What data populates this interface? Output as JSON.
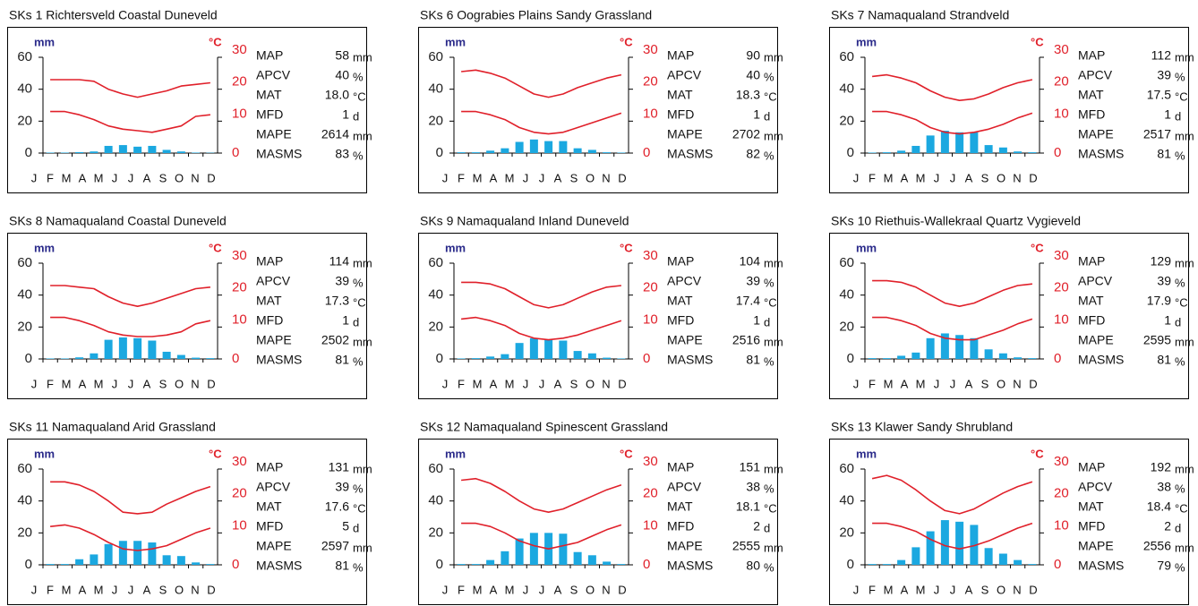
{
  "chart_data": [
    {
      "type": "bar",
      "title": "SKs 1  Richtersveld Coastal Duneveld",
      "ylabel": "mm",
      "y2label": "°C",
      "categories": [
        "J",
        "F",
        "M",
        "A",
        "M",
        "J",
        "J",
        "A",
        "S",
        "O",
        "N",
        "D"
      ],
      "ylim": [
        0,
        60
      ],
      "yticks": [
        0,
        20,
        40,
        60
      ],
      "y2lim": [
        0,
        30
      ],
      "y2ticks": [
        0,
        10,
        20,
        30
      ],
      "series": [
        {
          "type": "bar",
          "color": "#1ba8e0",
          "values": [
            0.3,
            0.3,
            0.6,
            1,
            4.5,
            5,
            4,
            4.5,
            2,
            1,
            0.3,
            0.2
          ]
        },
        {
          "type": "line",
          "axis": "y2",
          "color": "#e0202a",
          "values": [
            23,
            23,
            23,
            22.5,
            20,
            18.5,
            17.5,
            18.5,
            19.5,
            21,
            21.5,
            22
          ]
        },
        {
          "type": "line",
          "axis": "y2",
          "color": "#e0202a",
          "values": [
            13,
            13,
            12,
            10.5,
            8.5,
            7.5,
            7,
            6.5,
            7.5,
            8.5,
            11.5,
            12
          ]
        }
      ],
      "stats": [
        {
          "name": "MAP",
          "value": 58,
          "unit": "mm"
        },
        {
          "name": "APCV",
          "value": 40,
          "unit": "%"
        },
        {
          "name": "MAT",
          "value": "18.0",
          "unit": "°C"
        },
        {
          "name": "MFD",
          "value": 1,
          "unit": "d"
        },
        {
          "name": "MAPE",
          "value": 2614,
          "unit": "mm"
        },
        {
          "name": "MASMS",
          "value": 83,
          "unit": "%"
        }
      ]
    },
    {
      "type": "bar",
      "title": "SKs 6  Oograbies Plains Sandy Grassland",
      "ylabel": "mm",
      "y2label": "°C",
      "categories": [
        "J",
        "F",
        "M",
        "A",
        "M",
        "J",
        "J",
        "A",
        "S",
        "O",
        "N",
        "D"
      ],
      "ylim": [
        0,
        60
      ],
      "yticks": [
        0,
        20,
        40,
        60
      ],
      "y2lim": [
        0,
        30
      ],
      "y2ticks": [
        0,
        10,
        20,
        30
      ],
      "series": [
        {
          "type": "bar",
          "color": "#1ba8e0",
          "values": [
            0.5,
            0.5,
            1.5,
            3,
            7,
            8.5,
            7.5,
            7.5,
            3,
            2,
            0.5,
            0.3
          ]
        },
        {
          "type": "line",
          "axis": "y2",
          "color": "#e0202a",
          "values": [
            25.5,
            26,
            25,
            23.5,
            21,
            18.5,
            17.5,
            18.5,
            20.5,
            22,
            23.5,
            24.5
          ]
        },
        {
          "type": "line",
          "axis": "y2",
          "color": "#e0202a",
          "values": [
            13,
            13,
            12,
            10.5,
            8,
            6.5,
            6,
            6.5,
            8,
            9.5,
            11,
            12.5
          ]
        }
      ],
      "stats": [
        {
          "name": "MAP",
          "value": 90,
          "unit": "mm"
        },
        {
          "name": "APCV",
          "value": 40,
          "unit": "%"
        },
        {
          "name": "MAT",
          "value": 18.3,
          "unit": "°C"
        },
        {
          "name": "MFD",
          "value": 1,
          "unit": "d"
        },
        {
          "name": "MAPE",
          "value": 2702,
          "unit": "mm"
        },
        {
          "name": "MASMS",
          "value": 82,
          "unit": "%"
        }
      ]
    },
    {
      "type": "bar",
      "title": "SKs 7  Namaqualand Strandveld",
      "ylabel": "mm",
      "y2label": "°C",
      "categories": [
        "J",
        "F",
        "M",
        "A",
        "M",
        "J",
        "J",
        "A",
        "S",
        "O",
        "N",
        "D"
      ],
      "ylim": [
        0,
        60
      ],
      "yticks": [
        0,
        20,
        40,
        60
      ],
      "y2lim": [
        0,
        30
      ],
      "y2ticks": [
        0,
        10,
        20,
        30
      ],
      "series": [
        {
          "type": "bar",
          "color": "#1ba8e0",
          "values": [
            0.3,
            0.5,
            1.5,
            4.5,
            11,
            14,
            13,
            13,
            5,
            3.5,
            1,
            0.5
          ]
        },
        {
          "type": "line",
          "axis": "y2",
          "color": "#e0202a",
          "values": [
            24,
            24.5,
            23.5,
            22,
            19.5,
            17.5,
            16.5,
            17,
            18.5,
            20.5,
            22,
            23
          ]
        },
        {
          "type": "line",
          "axis": "y2",
          "color": "#e0202a",
          "values": [
            13,
            13,
            12,
            10.5,
            8,
            6.5,
            6,
            6.5,
            7.5,
            9,
            11,
            12.5
          ]
        }
      ],
      "stats": [
        {
          "name": "MAP",
          "value": 112,
          "unit": "mm"
        },
        {
          "name": "APCV",
          "value": 39,
          "unit": "%"
        },
        {
          "name": "MAT",
          "value": 17.5,
          "unit": "°C"
        },
        {
          "name": "MFD",
          "value": 1,
          "unit": "d"
        },
        {
          "name": "MAPE",
          "value": 2517,
          "unit": "mm"
        },
        {
          "name": "MASMS",
          "value": 81,
          "unit": "%"
        }
      ]
    },
    {
      "type": "bar",
      "title": "SKs 8  Namaqualand Coastal Duneveld",
      "ylabel": "mm",
      "y2label": "°C",
      "categories": [
        "J",
        "F",
        "M",
        "A",
        "M",
        "J",
        "J",
        "A",
        "S",
        "O",
        "N",
        "D"
      ],
      "ylim": [
        0,
        60
      ],
      "yticks": [
        0,
        20,
        40,
        60
      ],
      "y2lim": [
        0,
        30
      ],
      "y2ticks": [
        0,
        10,
        20,
        30
      ],
      "series": [
        {
          "type": "bar",
          "color": "#1ba8e0",
          "values": [
            0.3,
            0.3,
            1,
            3.5,
            12,
            13.5,
            13,
            11.5,
            4.5,
            2.5,
            0.8,
            0.5
          ]
        },
        {
          "type": "line",
          "axis": "y2",
          "color": "#e0202a",
          "values": [
            23,
            23,
            22.5,
            22,
            19.5,
            17.5,
            16.5,
            17.5,
            19,
            20.5,
            22,
            22.5
          ]
        },
        {
          "type": "line",
          "axis": "y2",
          "color": "#e0202a",
          "values": [
            13,
            13,
            12,
            10.5,
            8.5,
            7.5,
            7,
            7,
            7.5,
            8.5,
            11,
            12
          ]
        }
      ],
      "stats": [
        {
          "name": "MAP",
          "value": 114,
          "unit": "mm"
        },
        {
          "name": "APCV",
          "value": 39,
          "unit": "%"
        },
        {
          "name": "MAT",
          "value": 17.3,
          "unit": "°C"
        },
        {
          "name": "MFD",
          "value": 1,
          "unit": "d"
        },
        {
          "name": "MAPE",
          "value": 2502,
          "unit": "mm"
        },
        {
          "name": "MASMS",
          "value": 81,
          "unit": "%"
        }
      ]
    },
    {
      "type": "bar",
      "title": "SKs 9  Namaqualand Inland Duneveld",
      "ylabel": "mm",
      "y2label": "°C",
      "categories": [
        "J",
        "F",
        "M",
        "A",
        "M",
        "J",
        "J",
        "A",
        "S",
        "O",
        "N",
        "D"
      ],
      "ylim": [
        0,
        60
      ],
      "yticks": [
        0,
        20,
        40,
        60
      ],
      "y2lim": [
        0,
        30
      ],
      "y2ticks": [
        0,
        10,
        20,
        30
      ],
      "series": [
        {
          "type": "bar",
          "color": "#1ba8e0",
          "values": [
            0.3,
            0.5,
            1.5,
            3,
            10,
            13,
            12,
            11.5,
            5,
            3.5,
            0.8,
            0.3
          ]
        },
        {
          "type": "line",
          "axis": "y2",
          "color": "#e0202a",
          "values": [
            24,
            24,
            23.5,
            22,
            19.5,
            17,
            16,
            17,
            19,
            21,
            22.5,
            23
          ]
        },
        {
          "type": "line",
          "axis": "y2",
          "color": "#e0202a",
          "values": [
            12.5,
            13,
            12,
            10.5,
            8,
            6.5,
            6,
            6.5,
            7.5,
            9,
            10.5,
            12
          ]
        }
      ],
      "stats": [
        {
          "name": "MAP",
          "value": 104,
          "unit": "mm"
        },
        {
          "name": "APCV",
          "value": 39,
          "unit": "%"
        },
        {
          "name": "MAT",
          "value": 17.4,
          "unit": "°C"
        },
        {
          "name": "MFD",
          "value": 1,
          "unit": "d"
        },
        {
          "name": "MAPE",
          "value": 2516,
          "unit": "mm"
        },
        {
          "name": "MASMS",
          "value": 81,
          "unit": "%"
        }
      ]
    },
    {
      "type": "bar",
      "title": "SKs 10  Riethuis-Wallekraal Quartz Vygieveld",
      "ylabel": "mm",
      "y2label": "°C",
      "categories": [
        "J",
        "F",
        "M",
        "A",
        "M",
        "J",
        "J",
        "A",
        "S",
        "O",
        "N",
        "D"
      ],
      "ylim": [
        0,
        60
      ],
      "yticks": [
        0,
        20,
        40,
        60
      ],
      "y2lim": [
        0,
        30
      ],
      "y2ticks": [
        0,
        10,
        20,
        30
      ],
      "series": [
        {
          "type": "bar",
          "color": "#1ba8e0",
          "values": [
            0.5,
            0.5,
            2,
            4,
            13,
            16,
            15,
            13,
            6,
            3.5,
            1,
            0.5
          ]
        },
        {
          "type": "line",
          "axis": "y2",
          "color": "#e0202a",
          "values": [
            24.5,
            24.5,
            24,
            22.5,
            20,
            17.5,
            16.5,
            17.5,
            19.5,
            21.5,
            23,
            23.5
          ]
        },
        {
          "type": "line",
          "axis": "y2",
          "color": "#e0202a",
          "values": [
            13,
            13,
            12,
            10.5,
            8,
            6.5,
            6,
            6,
            7.5,
            9,
            11,
            12.5
          ]
        }
      ],
      "stats": [
        {
          "name": "MAP",
          "value": 129,
          "unit": "mm"
        },
        {
          "name": "APCV",
          "value": 39,
          "unit": "%"
        },
        {
          "name": "MAT",
          "value": 17.9,
          "unit": "°C"
        },
        {
          "name": "MFD",
          "value": 1,
          "unit": "d"
        },
        {
          "name": "MAPE",
          "value": 2595,
          "unit": "mm"
        },
        {
          "name": "MASMS",
          "value": 81,
          "unit": "%"
        }
      ]
    },
    {
      "type": "bar",
      "title": "SKs 11  Namaqualand Arid Grassland",
      "ylabel": "mm",
      "y2label": "°C",
      "categories": [
        "J",
        "F",
        "M",
        "A",
        "M",
        "J",
        "J",
        "A",
        "S",
        "O",
        "N",
        "D"
      ],
      "ylim": [
        0,
        60
      ],
      "yticks": [
        0,
        20,
        40,
        60
      ],
      "y2lim": [
        0,
        30
      ],
      "y2ticks": [
        0,
        10,
        20,
        30
      ],
      "series": [
        {
          "type": "bar",
          "color": "#1ba8e0",
          "values": [
            0.5,
            0.5,
            3.5,
            6.5,
            13,
            15,
            15,
            14,
            6,
            5.5,
            1.5,
            0.5
          ]
        },
        {
          "type": "line",
          "axis": "y2",
          "color": "#e0202a",
          "values": [
            26,
            26,
            25,
            23,
            20,
            16.5,
            16,
            16.5,
            19,
            21,
            23,
            24.5
          ]
        },
        {
          "type": "line",
          "axis": "y2",
          "color": "#e0202a",
          "values": [
            12,
            12.5,
            11.5,
            9.5,
            7,
            5,
            4.5,
            5,
            6,
            8,
            10,
            11.5
          ]
        }
      ],
      "stats": [
        {
          "name": "MAP",
          "value": 131,
          "unit": "mm"
        },
        {
          "name": "APCV",
          "value": 39,
          "unit": "%"
        },
        {
          "name": "MAT",
          "value": 17.6,
          "unit": "°C"
        },
        {
          "name": "MFD",
          "value": 5,
          "unit": "d"
        },
        {
          "name": "MAPE",
          "value": 2597,
          "unit": "mm"
        },
        {
          "name": "MASMS",
          "value": 81,
          "unit": "%"
        }
      ]
    },
    {
      "type": "bar",
      "title": "SKs 12  Namaqualand Spinescent Grassland",
      "ylabel": "mm",
      "y2label": "°C",
      "categories": [
        "J",
        "F",
        "M",
        "A",
        "M",
        "J",
        "J",
        "A",
        "S",
        "O",
        "N",
        "D"
      ],
      "ylim": [
        0,
        60
      ],
      "yticks": [
        0,
        20,
        40,
        60
      ],
      "y2lim": [
        0,
        30
      ],
      "y2ticks": [
        0,
        10,
        20,
        30
      ],
      "series": [
        {
          "type": "bar",
          "color": "#1ba8e0",
          "values": [
            0.5,
            0.5,
            3,
            8.5,
            16.5,
            20,
            20,
            19.5,
            8,
            6,
            2,
            0.5
          ]
        },
        {
          "type": "line",
          "axis": "y2",
          "color": "#e0202a",
          "values": [
            26.5,
            27,
            25.5,
            23,
            20,
            17.5,
            16.5,
            17.5,
            19.5,
            21.5,
            23.5,
            25
          ]
        },
        {
          "type": "line",
          "axis": "y2",
          "color": "#e0202a",
          "values": [
            13,
            13,
            12,
            10,
            7.5,
            6,
            5,
            6,
            7,
            9,
            11,
            12.5
          ]
        }
      ],
      "stats": [
        {
          "name": "MAP",
          "value": 151,
          "unit": "mm"
        },
        {
          "name": "APCV",
          "value": 38,
          "unit": "%"
        },
        {
          "name": "MAT",
          "value": 18.1,
          "unit": "°C"
        },
        {
          "name": "MFD",
          "value": 2,
          "unit": "d"
        },
        {
          "name": "MAPE",
          "value": 2555,
          "unit": "mm"
        },
        {
          "name": "MASMS",
          "value": 80,
          "unit": "%"
        }
      ]
    },
    {
      "type": "bar",
      "title": "SKs 13  Klawer Sandy Shrubland",
      "ylabel": "mm",
      "y2label": "°C",
      "categories": [
        "J",
        "F",
        "M",
        "A",
        "M",
        "J",
        "J",
        "A",
        "S",
        "O",
        "N",
        "D"
      ],
      "ylim": [
        0,
        60
      ],
      "yticks": [
        0,
        20,
        40,
        60
      ],
      "y2lim": [
        0,
        30
      ],
      "y2ticks": [
        0,
        10,
        20,
        30
      ],
      "series": [
        {
          "type": "bar",
          "color": "#1ba8e0",
          "values": [
            0.5,
            0.5,
            3,
            11,
            21,
            28,
            27,
            25,
            10.5,
            7,
            3,
            0.5
          ]
        },
        {
          "type": "line",
          "axis": "y2",
          "color": "#e0202a",
          "values": [
            27,
            28,
            26.5,
            23.5,
            20,
            17,
            16,
            17.5,
            20,
            22.5,
            24.5,
            26
          ]
        },
        {
          "type": "line",
          "axis": "y2",
          "color": "#e0202a",
          "values": [
            13,
            13,
            12,
            10.5,
            8,
            6,
            5,
            6,
            7.5,
            9.5,
            11.5,
            13
          ]
        }
      ],
      "stats": [
        {
          "name": "MAP",
          "value": 192,
          "unit": "mm"
        },
        {
          "name": "APCV",
          "value": 38,
          "unit": "%"
        },
        {
          "name": "MAT",
          "value": 18.4,
          "unit": "°C"
        },
        {
          "name": "MFD",
          "value": 2,
          "unit": "d"
        },
        {
          "name": "MAPE",
          "value": 2556,
          "unit": "mm"
        },
        {
          "name": "MASMS",
          "value": 79,
          "unit": "%"
        }
      ]
    }
  ]
}
